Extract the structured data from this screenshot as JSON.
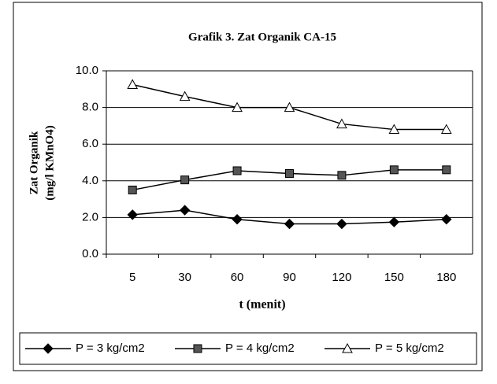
{
  "chart_data": {
    "type": "line",
    "title": "Grafik 3. Zat Organik CA-15",
    "y_label": [
      "Zat Organik",
      "(mg/l KMnO4)"
    ],
    "x_label": "t (menit)",
    "categories": [
      "5",
      "30",
      "60",
      "90",
      "120",
      "150",
      "180"
    ],
    "series": [
      {
        "name": "P = 3 kg/cm2",
        "color": "#000000",
        "marker": "diamond",
        "marker_fill": "#000000",
        "values": [
          2.15,
          2.4,
          1.9,
          1.65,
          1.65,
          1.75,
          1.9
        ]
      },
      {
        "name": "P = 4 kg/cm2",
        "color": "#000000",
        "marker": "square",
        "marker_fill": "#555555",
        "values": [
          3.5,
          4.05,
          4.55,
          4.4,
          4.3,
          4.6,
          4.6
        ]
      },
      {
        "name": "P = 5 kg/cm2",
        "color": "#000000",
        "marker": "triangle",
        "marker_fill": "#ffffff",
        "values": [
          9.25,
          8.6,
          8.0,
          8.0,
          7.1,
          6.8,
          6.8
        ]
      }
    ],
    "ylim": [
      0,
      10
    ],
    "yticks": [
      {
        "value": 0,
        "label": "0.0"
      },
      {
        "value": 2,
        "label": "2.0"
      },
      {
        "value": 4,
        "label": "4.0"
      },
      {
        "value": 6,
        "label": "6.0"
      },
      {
        "value": 8,
        "label": "8.0"
      },
      {
        "value": 10,
        "label": "10.0"
      }
    ],
    "grid": true,
    "legend": "bottom"
  }
}
